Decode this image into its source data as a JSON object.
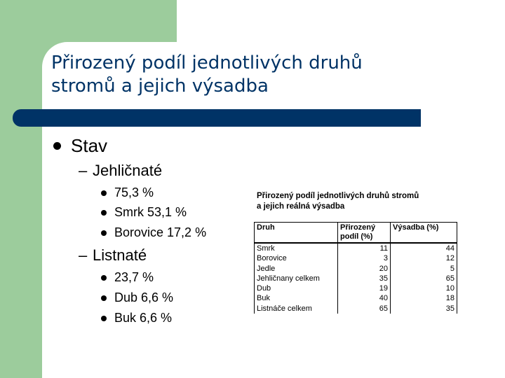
{
  "title": {
    "line1": "Přirozený podíl jednotlivých druhů",
    "line2": "stromů a jejich výsadba"
  },
  "content": {
    "stav": "Stav",
    "jehlicnate": {
      "label": "Jehličnaté",
      "items": [
        "75,3 %",
        "Smrk 53,1 %",
        "Borovice 17,2 %"
      ]
    },
    "listnate": {
      "label": "Listnaté",
      "items": [
        "23,7 %",
        "Dub 6,6 %",
        "Buk 6,6 %"
      ]
    }
  },
  "embedded_table": {
    "title_line1": "Přirozený podíl jednotlivých druhů stromů",
    "title_line2": "a jejich reálná výsadba",
    "headers": [
      "Druh",
      "Přirozený podíl (%)",
      "Výsadba (%)"
    ],
    "rows": [
      [
        "Smrk",
        "11",
        "44"
      ],
      [
        "Borovice",
        "3",
        "12"
      ],
      [
        "Jedle",
        "20",
        "5"
      ],
      [
        "Jehličnany celkem",
        "35",
        "65"
      ],
      [
        "Dub",
        "19",
        "10"
      ],
      [
        "Buk",
        "40",
        "18"
      ],
      [
        "Listnáče celkem",
        "65",
        "35"
      ]
    ]
  },
  "colors": {
    "accent_green": "#9ccc9c",
    "title_navy": "#003366"
  }
}
